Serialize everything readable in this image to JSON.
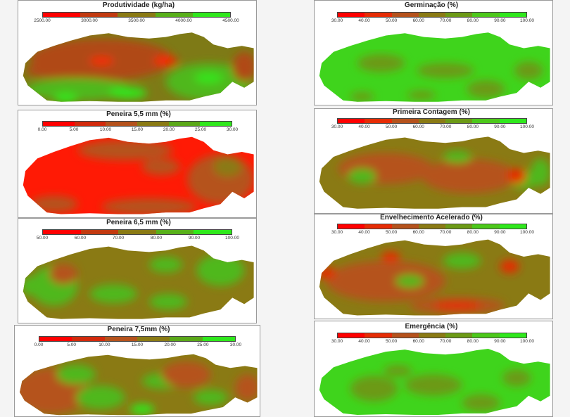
{
  "colors": {
    "red": "#ff0000",
    "orange_brown": "#b5521c",
    "olive": "#8a7a14",
    "green": "#4fb81a",
    "bright_green": "#32e61b",
    "frame": "#9a9a9a"
  },
  "maps": [
    {
      "id": "produtividade",
      "title": "Produtividade (kg/ha)",
      "legend_colors": [
        "#ff0000",
        "#c23a10",
        "#8a7a14",
        "#58b01a",
        "#2fe81c"
      ],
      "ticks": [
        "2500.00",
        "3000.00",
        "3500.00",
        "4000.00",
        "4500.00"
      ]
    },
    {
      "id": "germinacao",
      "title": "Germinação (%)",
      "legend_colors": [
        "#ff0000",
        "#e62c05",
        "#b5521c",
        "#8a7a14",
        "#6c9a16",
        "#4cc81a",
        "#2fe81c"
      ],
      "ticks": [
        "30.00",
        "40.00",
        "50.00",
        "60.00",
        "70.00",
        "80.00",
        "90.00",
        "100.00"
      ]
    },
    {
      "id": "peneira55",
      "title": "Peneira 5,5 mm (%)",
      "legend_colors": [
        "#ff0000",
        "#d22a0c",
        "#b5521c",
        "#8a7a14",
        "#5aa818",
        "#2fe81c"
      ],
      "ticks": [
        "0.00",
        "5.00",
        "10.00",
        "15.00",
        "20.00",
        "25.00",
        "30.00"
      ]
    },
    {
      "id": "primeira_contagem",
      "title": "Primeira Contagem (%)",
      "legend_colors": [
        "#ff0000",
        "#e62c05",
        "#b5521c",
        "#8a7a14",
        "#6c9a16",
        "#4cc81a",
        "#2fe81c"
      ],
      "ticks": [
        "30.00",
        "40.00",
        "50.00",
        "60.00",
        "70.00",
        "80.00",
        "90.00",
        "100.00"
      ]
    },
    {
      "id": "peneira65",
      "title": "Peneira 6,5 mm (%)",
      "legend_colors": [
        "#ff0000",
        "#c23a10",
        "#8a7a14",
        "#58b01a",
        "#2fe81c"
      ],
      "ticks": [
        "50.00",
        "60.00",
        "70.00",
        "80.00",
        "90.00",
        "100.00"
      ]
    },
    {
      "id": "envelhecimento",
      "title": "Envelhecimento Acelerado (%)",
      "legend_colors": [
        "#ff0000",
        "#e62c05",
        "#b5521c",
        "#8a7a14",
        "#6c9a16",
        "#4cc81a",
        "#2fe81c"
      ],
      "ticks": [
        "30.00",
        "40.00",
        "50.00",
        "60.00",
        "70.00",
        "80.00",
        "90.00",
        "100.00"
      ]
    },
    {
      "id": "peneira75",
      "title": "Peneira 7,5mm (%)",
      "legend_colors": [
        "#ff0000",
        "#d22a0c",
        "#b5521c",
        "#8a7a14",
        "#5aa818",
        "#2fe81c"
      ],
      "ticks": [
        "0.00",
        "5.00",
        "10.00",
        "15.00",
        "20.00",
        "25.00",
        "30.00"
      ]
    },
    {
      "id": "emergencia",
      "title": "Emergência (%)",
      "legend_colors": [
        "#ff0000",
        "#e62c05",
        "#b5521c",
        "#8a7a14",
        "#6c9a16",
        "#4cc81a",
        "#2fe81c"
      ],
      "ticks": [
        "30.00",
        "40.00",
        "50.00",
        "60.00",
        "70.00",
        "80.00",
        "90.00",
        "100.00"
      ]
    }
  ]
}
